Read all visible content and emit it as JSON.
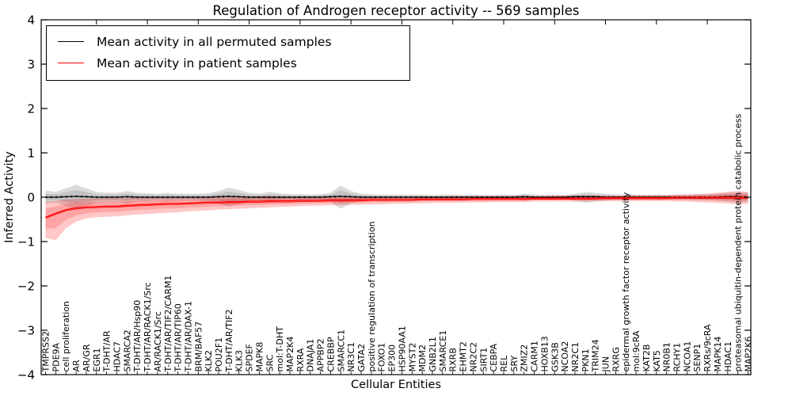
{
  "figure": {
    "title": "Regulation of Androgen receptor activity -- 569 samples",
    "xlabel": "Cellular Entities",
    "ylabel": "Inferred Activity"
  },
  "legend": {
    "entries": [
      {
        "label": "Mean activity in all permuted samples",
        "color": "#000000"
      },
      {
        "label": "Mean activity in patient samples",
        "color": "#ff0000"
      }
    ],
    "position": "upper left"
  },
  "chart_data": {
    "type": "line",
    "title": "Regulation of Androgen receptor activity -- 569 samples",
    "xlabel": "Cellular Entities",
    "ylabel": "Inferred Activity",
    "ylim": [
      -4,
      4
    ],
    "yticks": [
      -4,
      -3,
      -2,
      -1,
      0,
      1,
      2,
      3,
      4
    ],
    "grid": false,
    "legend_position": "upper left",
    "categories": [
      "TMPRSS2",
      "PDE9A",
      "cell proliferation",
      "AR",
      "AR/GR",
      "EGR1",
      "T-DHT/AR",
      "HDAC7",
      "SMARCA2",
      "T-DHT/AR/Hsp90",
      "T-DHT/AR/RACK1/Src",
      "AR/RACK1/Src",
      "T-DHT/AR/TIF2/CARM1",
      "T-DHT/AR/TIP60",
      "T-DHT/AR/DAX-1",
      "BRM/BAF57",
      "KLK2",
      "POU2F1",
      "T-DHT/AR/TIF2",
      "KLK3",
      "SPDEF",
      "MAPK8",
      "SRC",
      "mol:T-DHT",
      "MAP2K4",
      "RXRA",
      "DNAJA1",
      "APPBP2",
      "CREBBP",
      "SMARCC1",
      "NR3C1",
      "GATA2",
      "positive regulation of transcription",
      "FOXO1",
      "EP300",
      "HSP90AA1",
      "MYST2",
      "MDM2",
      "GNB2L1",
      "SMARCE1",
      "RXRB",
      "EHMT2",
      "NR2C2",
      "SIRT1",
      "CEBPA",
      "REL",
      "SRY",
      "ZMIZ2",
      "CARM1",
      "HOXB13",
      "GSK3B",
      "NCOA2",
      "NR2C1",
      "PKN1",
      "TRIM24",
      "JUN",
      "RXRG",
      "epidermal growth factor receptor activity",
      "mol:9cRA",
      "KAT2B",
      "KAT5",
      "NR0B1",
      "RCHY1",
      "NCOA1",
      "SENP1",
      "RXRs/9cRA",
      "MAPK14",
      "HDAC1",
      "proteasomal ubiquitin-dependent protein catabolic process",
      "MAP2K6"
    ],
    "series": [
      {
        "name": "Mean activity in all permuted samples",
        "color": "#000000",
        "band_color": "#000000",
        "band_opacity": 0.14,
        "values": [
          0,
          0,
          0.01,
          0.02,
          0.01,
          0,
          0,
          0,
          0.01,
          0,
          0,
          0,
          0,
          0,
          0,
          0,
          0,
          0.01,
          0.02,
          0.01,
          0,
          0,
          0,
          0,
          0,
          0,
          0,
          0,
          0.01,
          0.02,
          0.01,
          0,
          0,
          0,
          0,
          0,
          0,
          0,
          0,
          0,
          0,
          0,
          0,
          0,
          0,
          0,
          0,
          0.01,
          0,
          0,
          0,
          0,
          0.01,
          0.01,
          0.01,
          0,
          0,
          0,
          0,
          0,
          0,
          0,
          0,
          0,
          0,
          0,
          0,
          0.01,
          0.01,
          0
        ],
        "band_lower": [
          -0.15,
          -0.12,
          -0.2,
          -0.28,
          -0.2,
          -0.12,
          -0.1,
          -0.1,
          -0.14,
          -0.1,
          -0.09,
          -0.08,
          -0.1,
          -0.08,
          -0.08,
          -0.08,
          -0.09,
          -0.14,
          -0.22,
          -0.16,
          -0.1,
          -0.08,
          -0.12,
          -0.09,
          -0.07,
          -0.07,
          -0.06,
          -0.07,
          -0.1,
          -0.26,
          -0.14,
          -0.08,
          -0.07,
          -0.06,
          -0.06,
          -0.06,
          -0.06,
          -0.06,
          -0.05,
          -0.06,
          -0.06,
          -0.05,
          -0.06,
          -0.05,
          -0.05,
          -0.06,
          -0.05,
          -0.08,
          -0.06,
          -0.05,
          -0.06,
          -0.05,
          -0.08,
          -0.12,
          -0.1,
          -0.08,
          -0.06,
          -0.06,
          -0.06,
          -0.05,
          -0.06,
          -0.05,
          -0.06,
          -0.06,
          -0.07,
          -0.07,
          -0.08,
          -0.1,
          -0.12,
          -0.1
        ],
        "band_upper": [
          0.15,
          0.12,
          0.2,
          0.28,
          0.2,
          0.12,
          0.1,
          0.1,
          0.14,
          0.1,
          0.09,
          0.08,
          0.1,
          0.08,
          0.08,
          0.08,
          0.09,
          0.14,
          0.22,
          0.16,
          0.1,
          0.08,
          0.12,
          0.09,
          0.07,
          0.07,
          0.06,
          0.07,
          0.1,
          0.26,
          0.14,
          0.08,
          0.07,
          0.06,
          0.06,
          0.06,
          0.06,
          0.06,
          0.05,
          0.06,
          0.06,
          0.05,
          0.06,
          0.05,
          0.05,
          0.06,
          0.05,
          0.08,
          0.06,
          0.05,
          0.06,
          0.05,
          0.08,
          0.12,
          0.1,
          0.08,
          0.06,
          0.06,
          0.06,
          0.05,
          0.06,
          0.05,
          0.06,
          0.06,
          0.07,
          0.07,
          0.08,
          0.1,
          0.12,
          0.1
        ]
      },
      {
        "name": "Mean activity in patient samples",
        "color": "#ff0000",
        "band_color": "#ff0000",
        "band_opacity": 0.22,
        "values": [
          -0.45,
          -0.36,
          -0.28,
          -0.24,
          -0.22,
          -0.21,
          -0.2,
          -0.2,
          -0.18,
          -0.17,
          -0.16,
          -0.15,
          -0.14,
          -0.14,
          -0.13,
          -0.12,
          -0.11,
          -0.11,
          -0.1,
          -0.1,
          -0.09,
          -0.09,
          -0.08,
          -0.08,
          -0.08,
          -0.07,
          -0.07,
          -0.07,
          -0.06,
          -0.06,
          -0.06,
          -0.06,
          -0.05,
          -0.05,
          -0.05,
          -0.05,
          -0.05,
          -0.04,
          -0.04,
          -0.04,
          -0.04,
          -0.04,
          -0.03,
          -0.03,
          -0.03,
          -0.03,
          -0.03,
          -0.03,
          -0.02,
          -0.02,
          -0.02,
          -0.02,
          -0.02,
          -0.02,
          -0.02,
          -0.01,
          -0.01,
          -0.01,
          -0.01,
          -0.01,
          -0.01,
          -0.01,
          0,
          0,
          0,
          0,
          0,
          0,
          0,
          0
        ],
        "band_lower": [
          -0.92,
          -0.97,
          -0.7,
          -0.55,
          -0.48,
          -0.45,
          -0.44,
          -0.43,
          -0.41,
          -0.39,
          -0.38,
          -0.36,
          -0.35,
          -0.34,
          -0.32,
          -0.31,
          -0.3,
          -0.28,
          -0.27,
          -0.26,
          -0.25,
          -0.24,
          -0.23,
          -0.22,
          -0.21,
          -0.2,
          -0.19,
          -0.19,
          -0.18,
          -0.18,
          -0.17,
          -0.17,
          -0.16,
          -0.16,
          -0.15,
          -0.15,
          -0.14,
          -0.14,
          -0.13,
          -0.13,
          -0.13,
          -0.12,
          -0.12,
          -0.12,
          -0.11,
          -0.11,
          -0.11,
          -0.11,
          -0.1,
          -0.1,
          -0.1,
          -0.1,
          -0.1,
          -0.1,
          -0.09,
          -0.09,
          -0.09,
          -0.09,
          -0.09,
          -0.09,
          -0.09,
          -0.09,
          -0.1,
          -0.1,
          -0.11,
          -0.12,
          -0.13,
          -0.14,
          -0.16,
          -0.15
        ],
        "band_upper": [
          -0.1,
          -0.08,
          -0.05,
          -0.04,
          -0.03,
          -0.03,
          -0.02,
          -0.02,
          -0.02,
          -0.01,
          -0.01,
          -0.01,
          -0.01,
          -0.01,
          -0.01,
          0,
          0,
          0,
          0.01,
          0.01,
          0.01,
          0.02,
          0.03,
          0.02,
          0.01,
          0.01,
          0.01,
          0.01,
          0.02,
          0.02,
          0.02,
          0.02,
          0.02,
          0.02,
          0.02,
          0.02,
          0.02,
          0.02,
          0.02,
          0.02,
          0.03,
          0.03,
          0.03,
          0.03,
          0.03,
          0.03,
          0.03,
          0.03,
          0.03,
          0.03,
          0.04,
          0.04,
          0.04,
          0.04,
          0.04,
          0.04,
          0.04,
          0.04,
          0.05,
          0.05,
          0.05,
          0.05,
          0.06,
          0.06,
          0.07,
          0.08,
          0.1,
          0.12,
          0.14,
          0.12
        ]
      }
    ]
  }
}
